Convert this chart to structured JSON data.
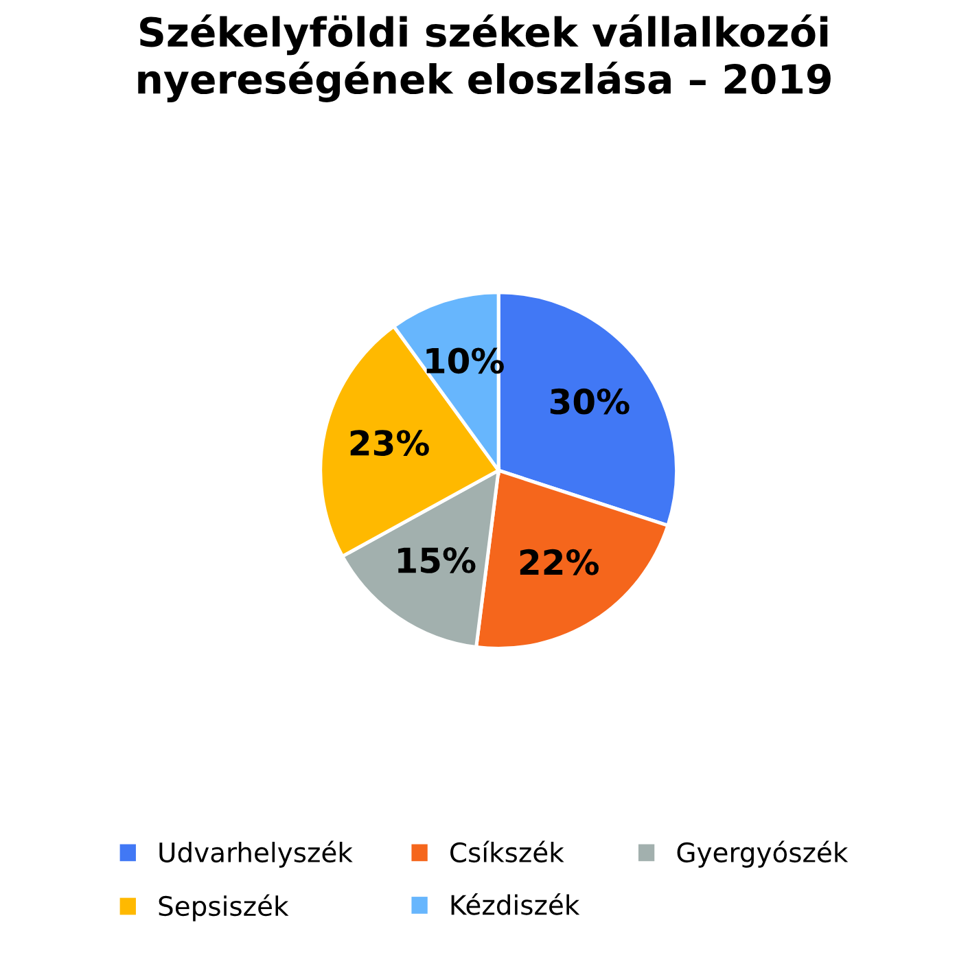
{
  "chart_data": {
    "type": "pie",
    "title": "Székelyföldi székek vállalkozói nyereségének eloszlása – 2019",
    "categories": [
      "Udvarhelyszék",
      "Csíkszék",
      "Gyergyószék",
      "Sepsiszék",
      "Kézdiszék"
    ],
    "values": [
      30,
      22,
      15,
      23,
      10
    ],
    "value_labels": [
      "30%",
      "22%",
      "15%",
      "23%",
      "10%"
    ],
    "colors": [
      "#4178f5",
      "#f5661c",
      "#a2b0ae",
      "#ffb900",
      "#67b6fd"
    ],
    "legend": "bottom"
  }
}
